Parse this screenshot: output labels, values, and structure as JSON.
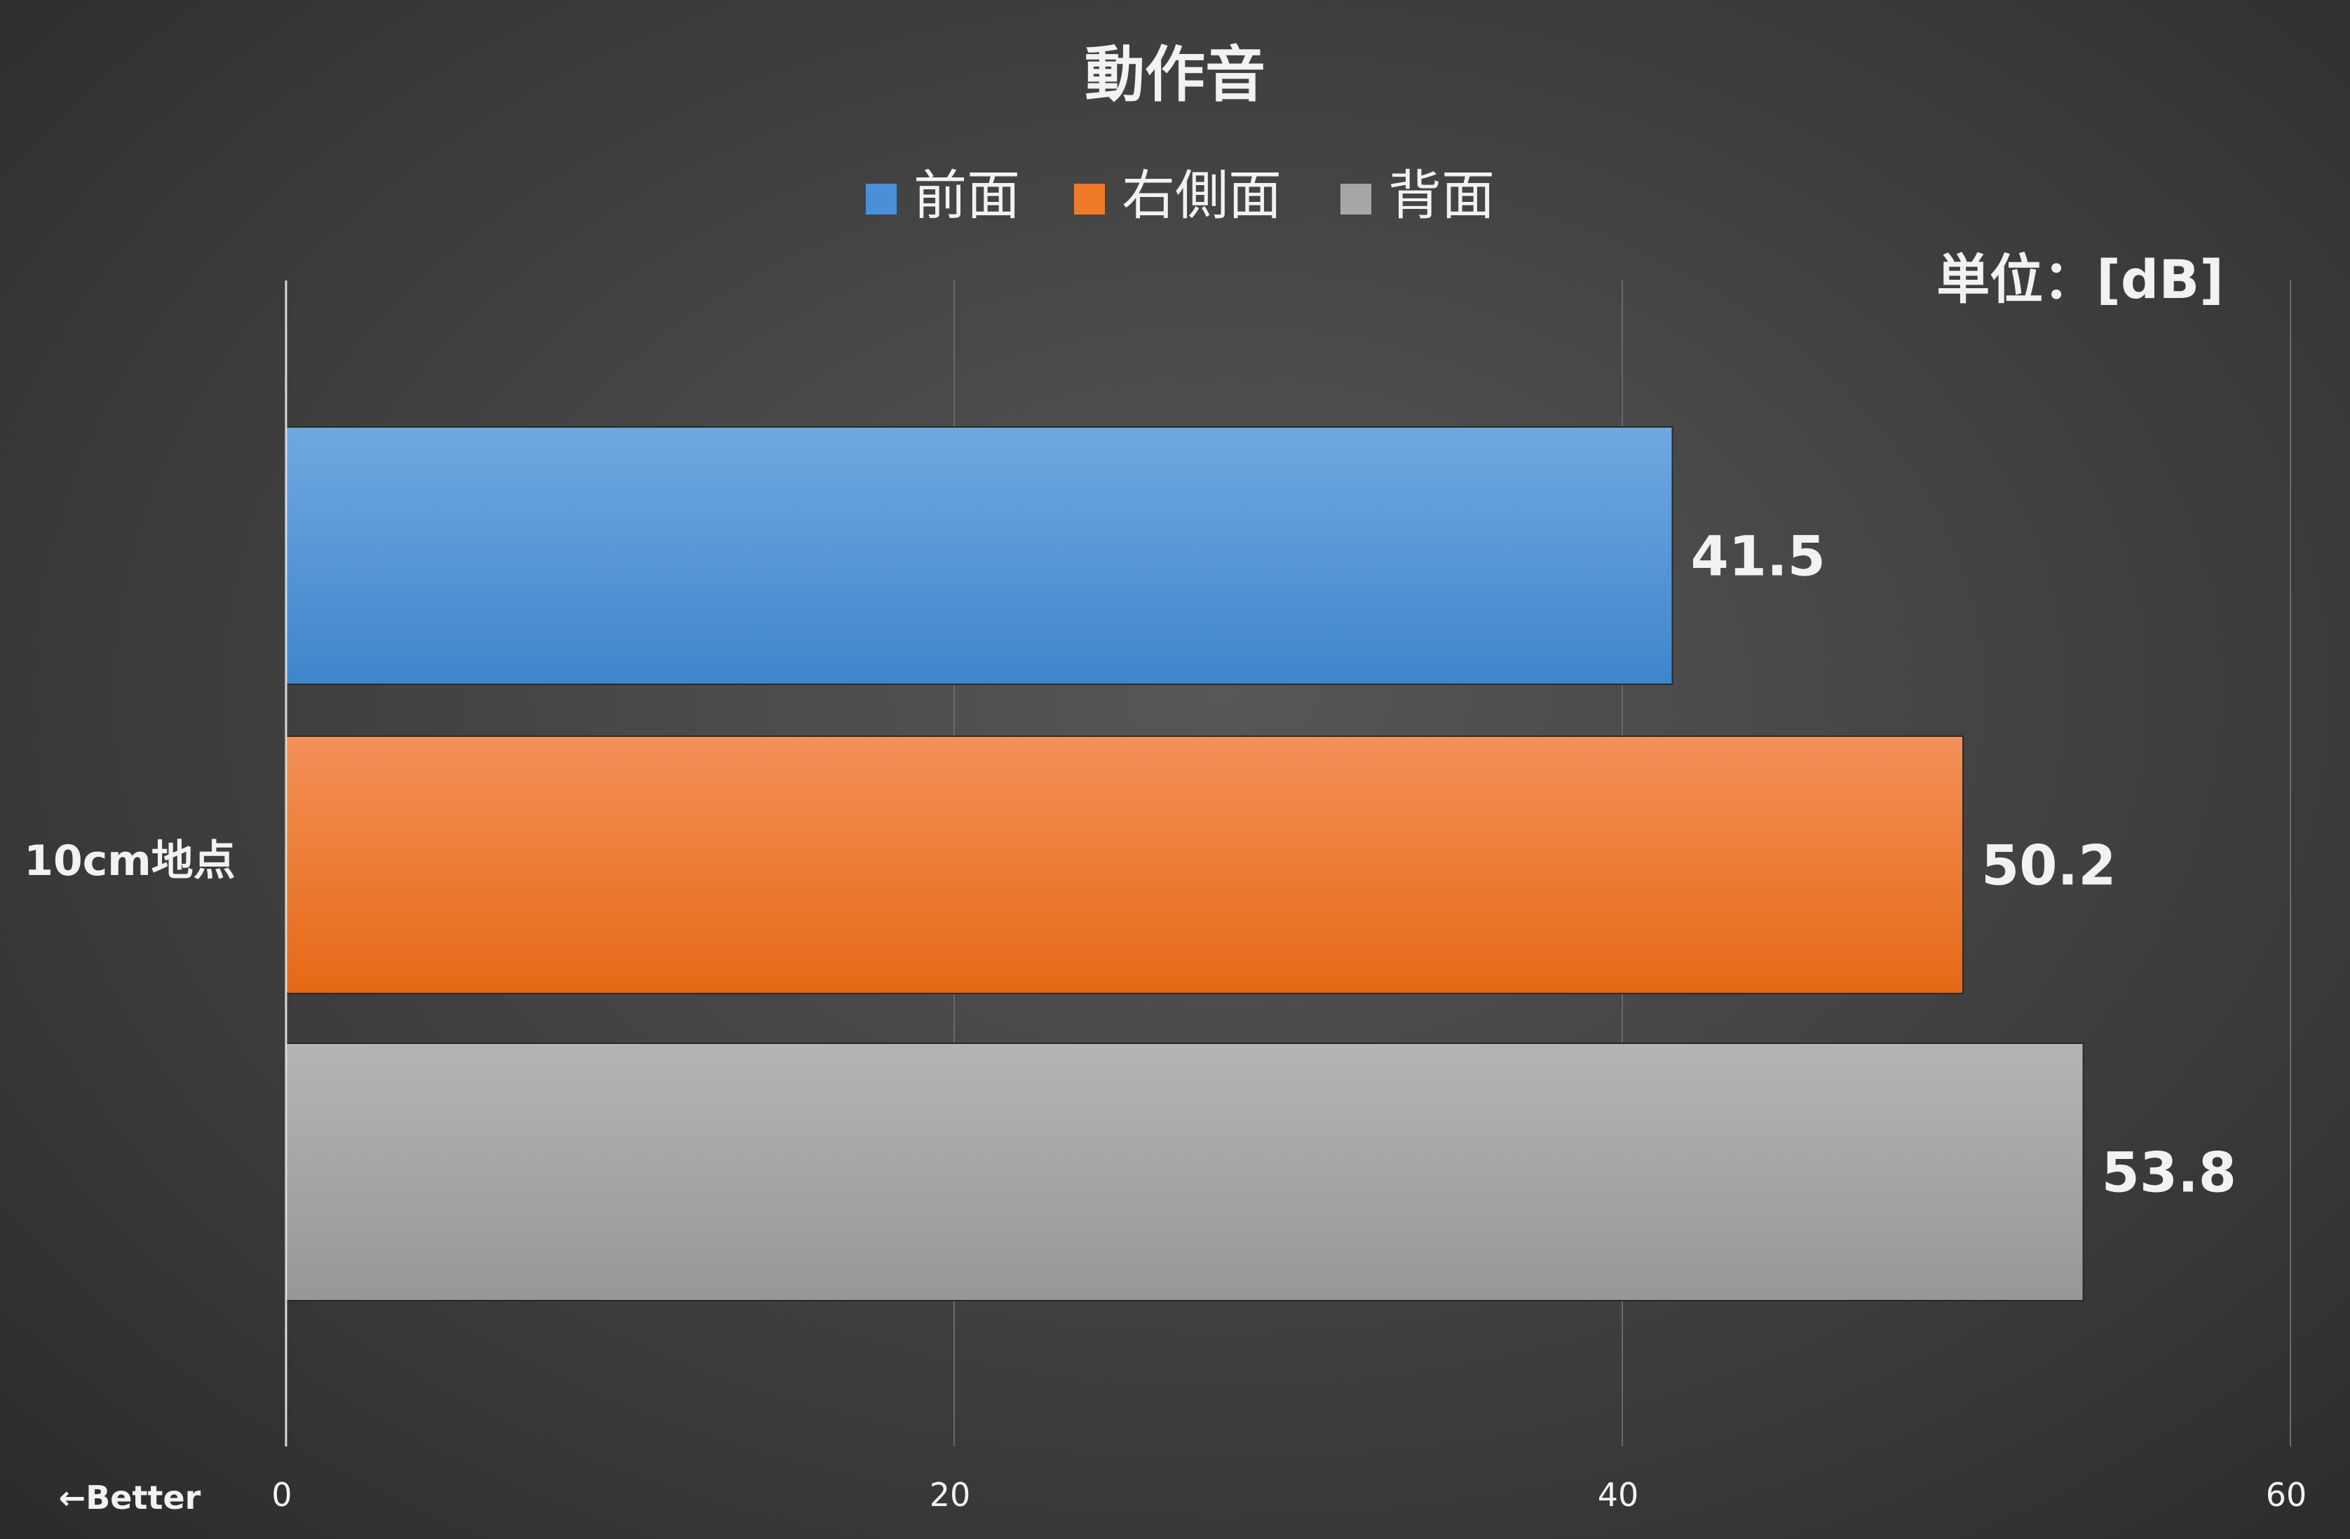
{
  "chart_data": {
    "type": "bar",
    "orientation": "horizontal",
    "title": "動作音",
    "unit_label": "単位：[dB]",
    "xlabel": "",
    "ylabel": "",
    "better_label": "←Better",
    "categories": [
      "10cm地点"
    ],
    "series": [
      {
        "name": "前面",
        "values": [
          41.5
        ],
        "color": "#4a90d9"
      },
      {
        "name": "右側面",
        "values": [
          50.2
        ],
        "color": "#f07a28"
      },
      {
        "name": "背面",
        "values": [
          53.8
        ],
        "color": "#a6a6a6"
      }
    ],
    "xlim": [
      0,
      60
    ],
    "xticks": [
      0,
      20,
      40,
      60
    ],
    "xtick_labels": [
      "0",
      "20",
      "40",
      "60"
    ],
    "grid": true,
    "legend_position": "top",
    "data_labels": [
      "41.5",
      "50.2",
      "53.8"
    ]
  }
}
